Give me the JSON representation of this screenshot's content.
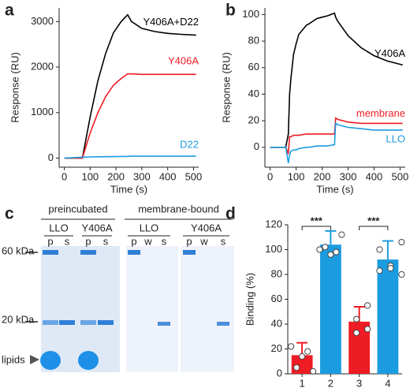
{
  "chart_data": [
    {
      "type": "line",
      "label": "a",
      "x_label": "Time (s)",
      "y_label": "Response (RU)",
      "x": [
        0,
        70,
        100,
        130,
        160,
        190,
        220,
        245,
        260,
        300,
        350,
        400,
        450,
        510
      ],
      "series": [
        {
          "name": "Y406A+D22",
          "color": "#000000",
          "values": [
            0,
            0,
            900,
            1700,
            2300,
            2750,
            3000,
            3150,
            3000,
            2850,
            2780,
            2740,
            2720,
            2700
          ]
        },
        {
          "name": "Y406A",
          "color": "#ee1c25",
          "values": [
            0,
            0,
            550,
            1000,
            1350,
            1600,
            1750,
            1850,
            1850,
            1840,
            1840,
            1840,
            1840,
            1840
          ]
        },
        {
          "name": "D22",
          "color": "#1c9ce0",
          "values": [
            0,
            20,
            25,
            28,
            30,
            32,
            35,
            38,
            40,
            40,
            40,
            40,
            40,
            40
          ]
        }
      ],
      "xlim": [
        -20,
        520
      ],
      "xticks": [
        0,
        100,
        200,
        300,
        400,
        500
      ],
      "ylim": [
        -200,
        3300
      ],
      "yticks": [
        0,
        1000,
        2000,
        3000
      ]
    },
    {
      "type": "line",
      "label": "b",
      "x_label": "Time (s)",
      "y_label": "Response (RU)",
      "x": [
        0,
        60,
        70,
        75,
        80,
        90,
        100,
        110,
        140,
        150,
        180,
        200,
        220,
        248,
        252,
        260,
        300,
        350,
        400,
        450,
        510
      ],
      "series": [
        {
          "name": "Y406A",
          "color": "#000000",
          "values": [
            0,
            0,
            10,
            40,
            52,
            70,
            78,
            85,
            92,
            93,
            97,
            98,
            99,
            101,
            98,
            95,
            84,
            75,
            69,
            65,
            62
          ]
        },
        {
          "name": "membrane",
          "color": "#ee1c25",
          "values": [
            0,
            0,
            -5,
            8,
            8,
            9,
            9,
            9,
            10,
            10,
            10,
            10,
            10,
            10,
            22,
            21,
            19,
            18,
            18,
            18,
            18
          ]
        },
        {
          "name": "LLO",
          "color": "#1c9ce0",
          "values": [
            0,
            0,
            -12,
            -6,
            -3,
            -2,
            -2,
            -1,
            0,
            0,
            1,
            1,
            1,
            2,
            18,
            17,
            15,
            14,
            13,
            13,
            13
          ]
        }
      ],
      "xlim": [
        -20,
        520
      ],
      "xticks": [
        0,
        100,
        200,
        300,
        400,
        500
      ],
      "ylim": [
        -15,
        105
      ],
      "yticks": [
        0,
        20,
        40,
        60,
        80,
        100
      ]
    },
    {
      "type": "bar",
      "label": "d",
      "y_label": "Binding (%)",
      "categories": [
        "1",
        "2",
        "3",
        "4"
      ],
      "values": [
        15,
        104,
        42,
        92
      ],
      "errors": [
        10,
        11,
        12,
        15
      ],
      "colors": [
        "#ee1c25",
        "#1c9ce0",
        "#ee1c25",
        "#1c9ce0"
      ],
      "points": [
        [
          2,
          5,
          14,
          18,
          22
        ],
        [
          112,
          102,
          96,
          98,
          100
        ],
        [
          55,
          44,
          33,
          36
        ],
        [
          106,
          100,
          87,
          85,
          83,
          80
        ]
      ],
      "brackets": [
        {
          "label": "***",
          "categories": [
            "1",
            "2"
          ]
        },
        {
          "label": "***",
          "categories": [
            "3",
            "4"
          ]
        }
      ],
      "ylim": [
        0,
        120
      ],
      "yticks": [
        0,
        20,
        40,
        60,
        80,
        100,
        120
      ]
    }
  ],
  "gel": {
    "label": "c",
    "groups": [
      {
        "title": "preincubated",
        "samples": [
          {
            "name": "LLO",
            "lanes": [
              "p",
              "s"
            ]
          },
          {
            "name": "Y406A",
            "lanes": [
              "p",
              "s"
            ]
          }
        ]
      },
      {
        "title": "membrane-bound",
        "samples": [
          {
            "name": "LLO",
            "lanes": [
              "p",
              "w",
              "s"
            ]
          },
          {
            "name": "Y406A",
            "lanes": [
              "p",
              "w",
              "s"
            ]
          }
        ]
      }
    ],
    "markers": [
      "60 kDa",
      "20 kDa",
      "lipids"
    ]
  }
}
